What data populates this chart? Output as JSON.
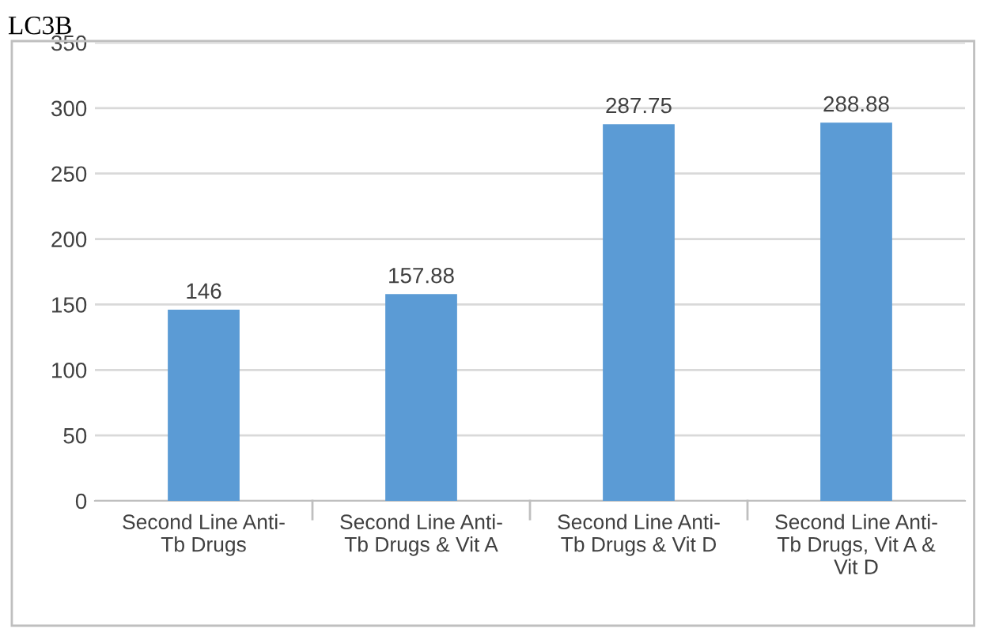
{
  "chart_data": {
    "type": "bar",
    "title": "LC3B",
    "categories": [
      "Second Line Anti-\nTb Drugs",
      "Second Line Anti-\nTb Drugs & Vit A",
      "Second Line Anti-\nTb Drugs & Vit D",
      "Second Line Anti-\nTb Drugs, Vit A &\nVit D"
    ],
    "values": [
      146,
      157.88,
      287.75,
      288.88
    ],
    "color": "#5b9bd5",
    "ylim": [
      0,
      350
    ],
    "yticks": [
      0,
      50,
      100,
      150,
      200,
      250,
      300,
      350
    ],
    "grid": "y",
    "data_labels": true,
    "legend": false
  }
}
